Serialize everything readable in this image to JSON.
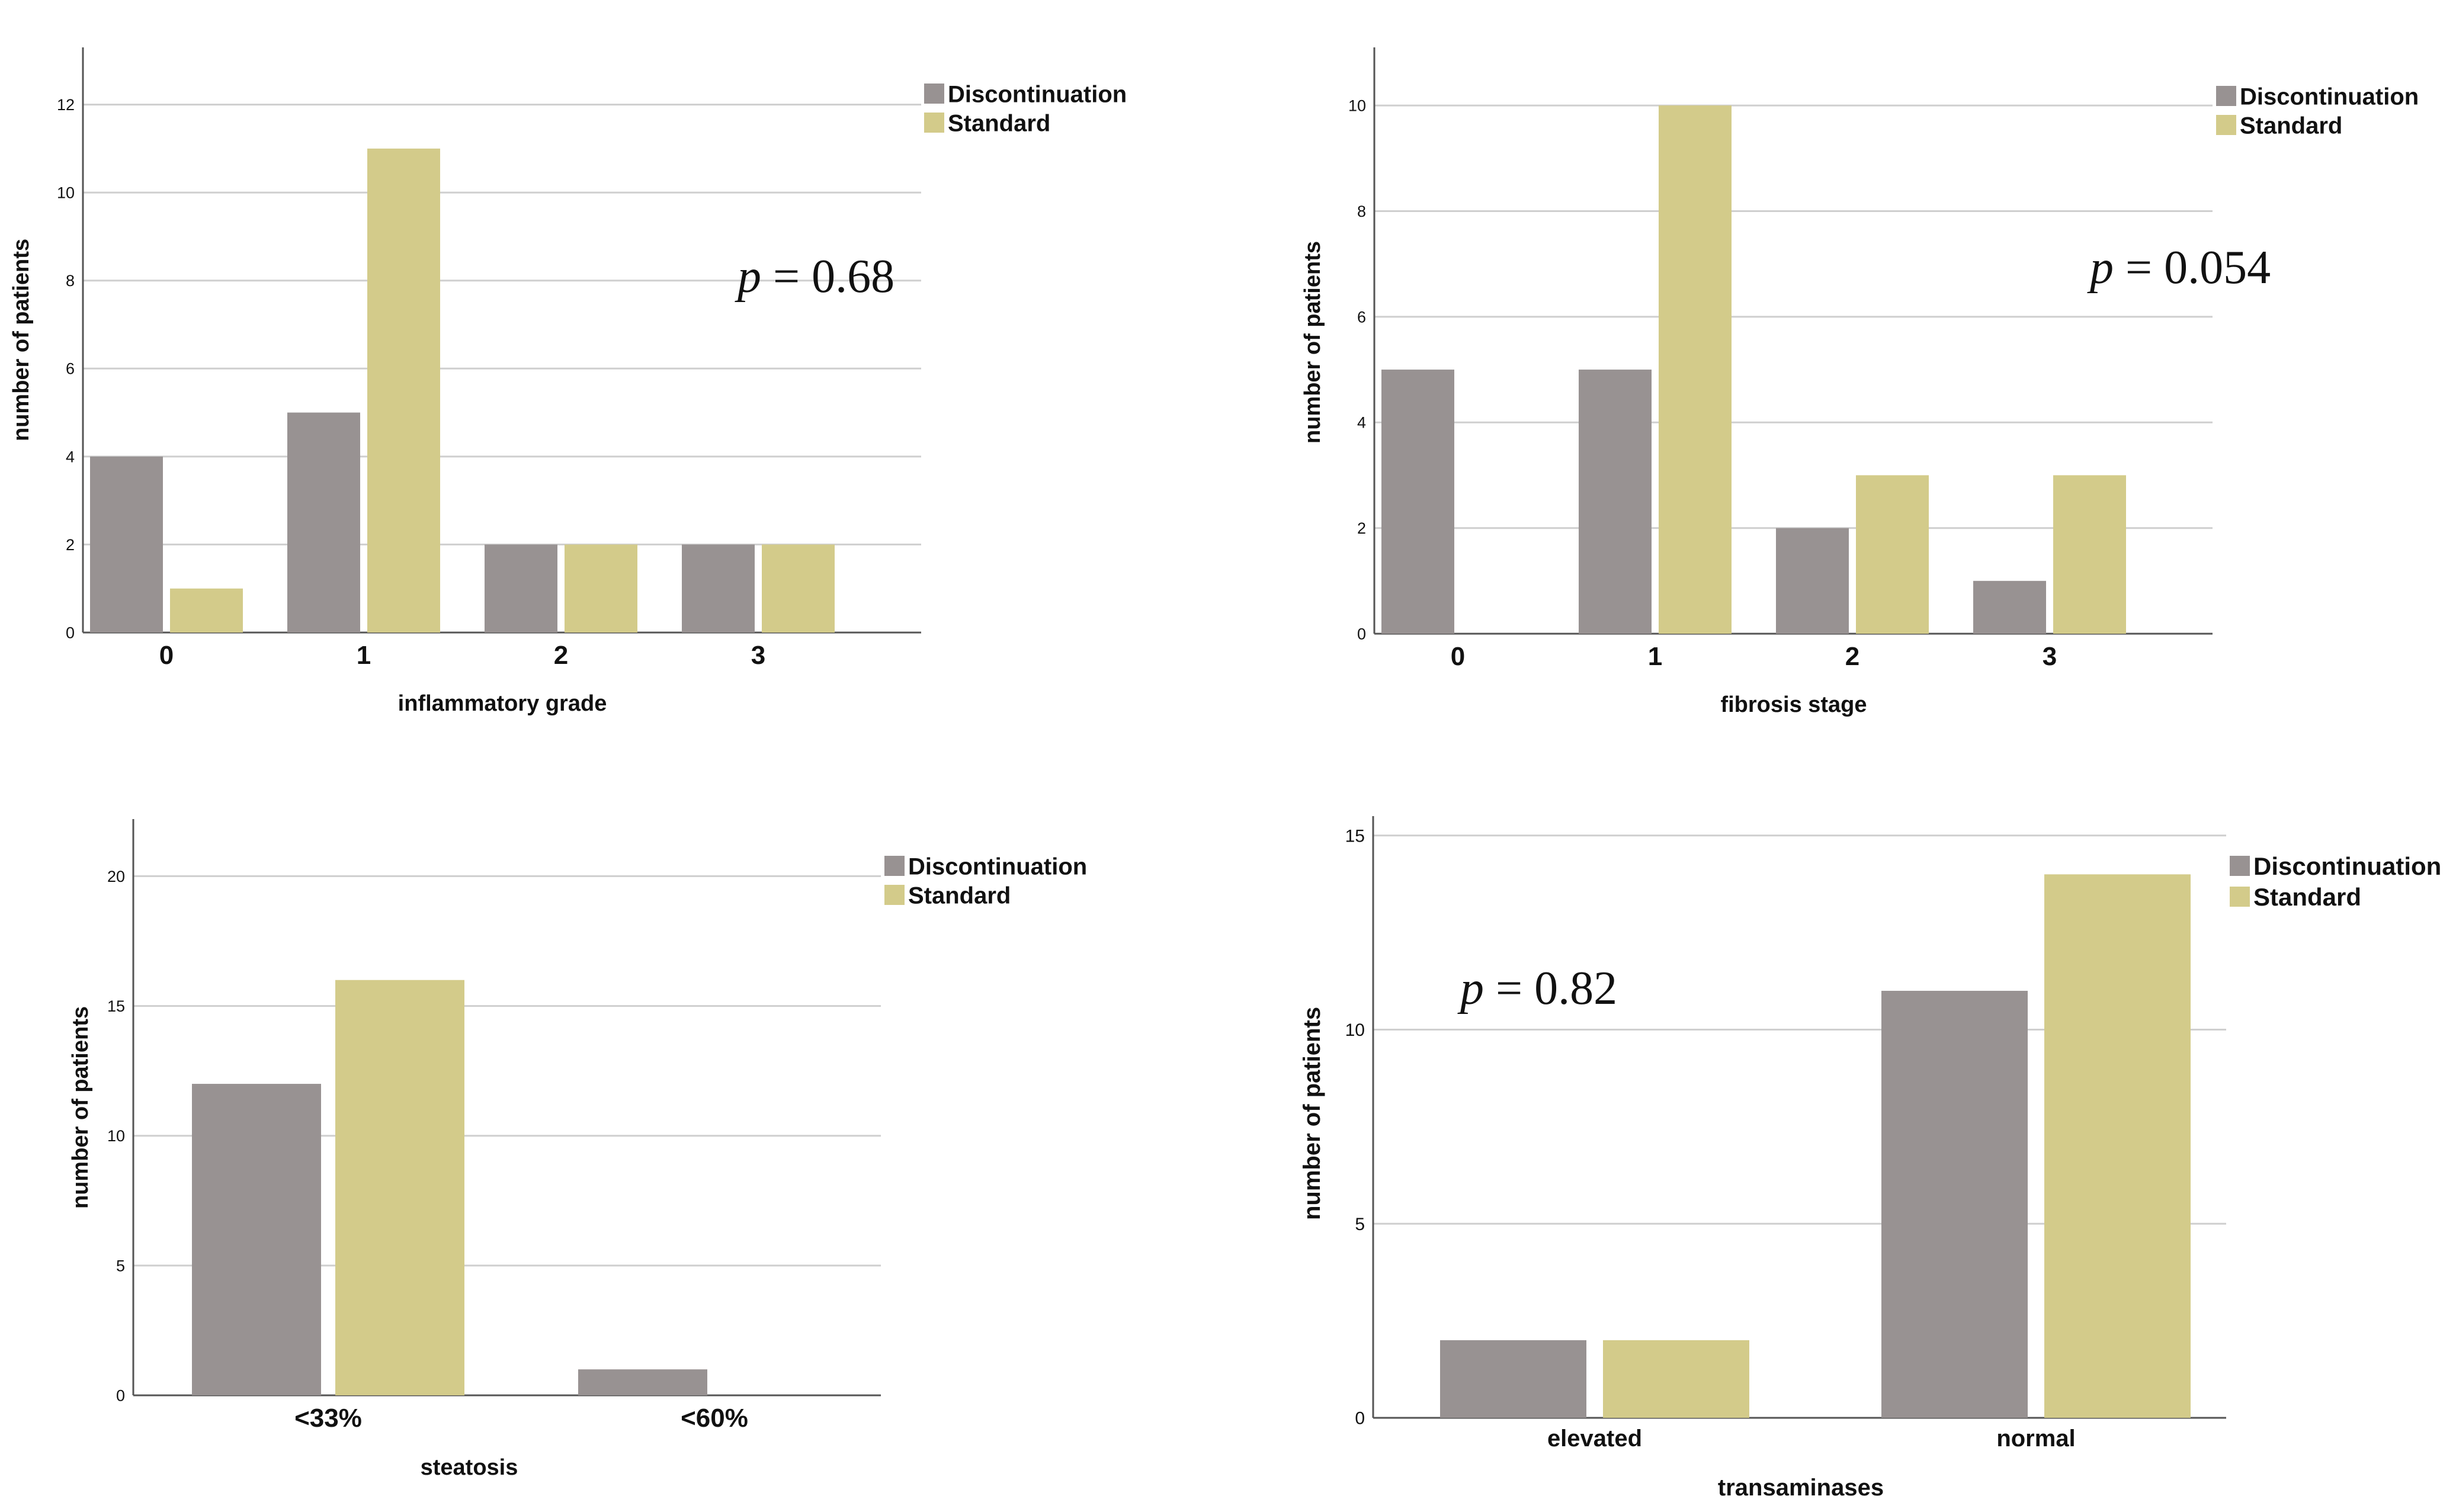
{
  "colors": {
    "discontinuation": "#989292",
    "standard": "#d3cb8a",
    "grid": "#cfcfcf",
    "axis": "#555555"
  },
  "chart_data": [
    {
      "type": "bar",
      "xlabel": "inflammatory grade",
      "ylabel": "number of patients",
      "categories": [
        "0",
        "1",
        "2",
        "3"
      ],
      "series": [
        {
          "name": "Discontinuation",
          "values": [
            4,
            5,
            2,
            2
          ]
        },
        {
          "name": "Standard",
          "values": [
            1,
            11,
            2,
            2
          ]
        }
      ],
      "ylim": [
        0,
        13.3
      ],
      "yticks": [
        0,
        2,
        4,
        6,
        8,
        10,
        12
      ],
      "grid": true,
      "legend": "top-right",
      "annotation": {
        "p_symbol": "p",
        "text": " = 0.68"
      }
    },
    {
      "type": "bar",
      "xlabel": "fibrosis stage",
      "ylabel": "number of patients",
      "categories": [
        "0",
        "1",
        "2",
        "3"
      ],
      "series": [
        {
          "name": "Discontinuation",
          "values": [
            5,
            5,
            2,
            1
          ]
        },
        {
          "name": "Standard",
          "values": [
            0,
            10,
            3,
            3
          ]
        }
      ],
      "ylim": [
        0,
        11.1
      ],
      "yticks": [
        0,
        2,
        4,
        6,
        8,
        10
      ],
      "grid": true,
      "legend": "top-right",
      "annotation": {
        "p_symbol": "p",
        "text": " = 0.054"
      }
    },
    {
      "type": "bar",
      "xlabel": "steatosis",
      "ylabel": "number of patients",
      "categories": [
        "<33%",
        "<60%"
      ],
      "series": [
        {
          "name": "Discontinuation",
          "values": [
            12,
            1
          ]
        },
        {
          "name": "Standard",
          "values": [
            16,
            0
          ]
        }
      ],
      "ylim": [
        0,
        22.2
      ],
      "yticks": [
        0,
        5,
        10,
        15,
        20
      ],
      "grid": true,
      "legend": "top-right"
    },
    {
      "type": "bar",
      "xlabel": "transaminases",
      "ylabel": "number of patients",
      "categories": [
        "elevated",
        "normal"
      ],
      "series": [
        {
          "name": "Discontinuation",
          "values": [
            2,
            11
          ]
        },
        {
          "name": "Standard",
          "values": [
            2,
            14
          ]
        }
      ],
      "ylim": [
        0,
        15.5
      ],
      "yticks": [
        0,
        5,
        10,
        15
      ],
      "grid": true,
      "legend": "top-right",
      "annotation": {
        "p_symbol": "p",
        "text": " = 0.82"
      }
    }
  ]
}
